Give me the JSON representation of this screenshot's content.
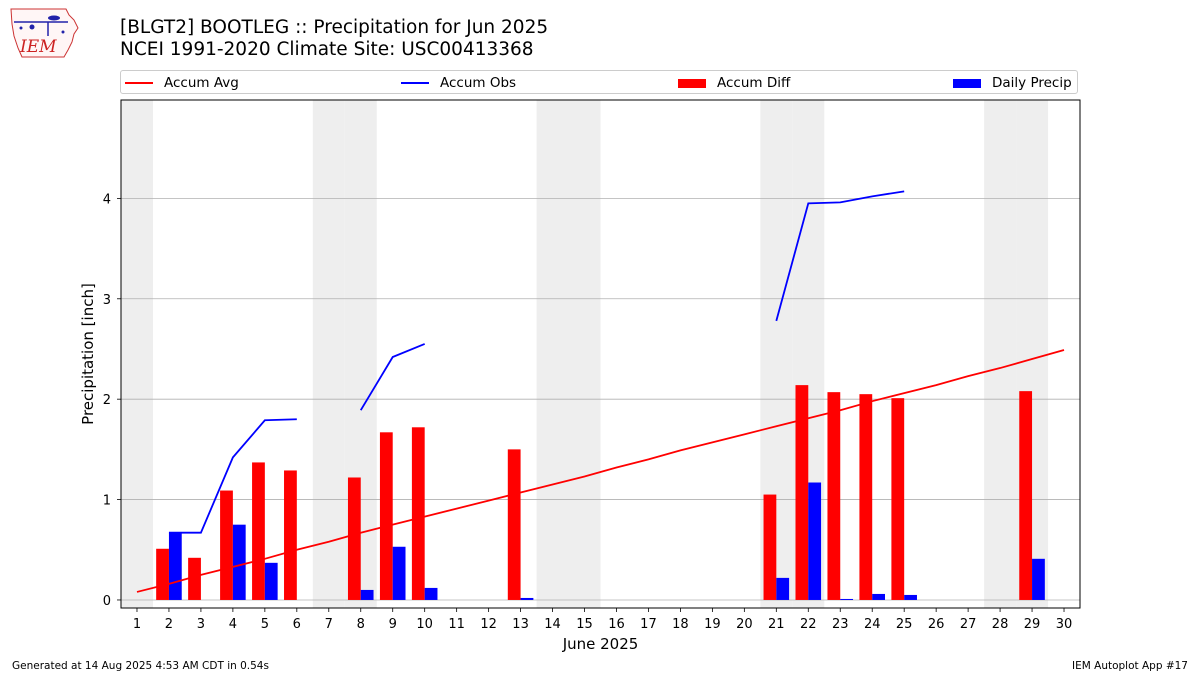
{
  "header": {
    "title_line1": "[BLGT2] BOOTLEG :: Precipitation for Jun 2025",
    "title_line2": "NCEI 1991-2020 Climate Site: USC00413368",
    "logo_text": "IEM"
  },
  "footer": {
    "left": "Generated at 14 Aug 2025 4:53 AM CDT in 0.54s",
    "right": "IEM Autoplot App #17"
  },
  "legend": {
    "placement": "top, above plot",
    "items": [
      {
        "label": "Accum Avg",
        "color": "#ff0000",
        "kind": "line"
      },
      {
        "label": "Accum Obs",
        "color": "#0000ff",
        "kind": "line"
      },
      {
        "label": "Accum Diff",
        "color": "#ff0000",
        "kind": "bar"
      },
      {
        "label": "Daily Precip",
        "color": "#0000ff",
        "kind": "bar"
      }
    ]
  },
  "chart_data": {
    "type": "bar",
    "xlabel": "June 2025",
    "ylabel": "Precipitation [inch]",
    "xlim": [
      0.5,
      30.5
    ],
    "ylim": [
      -0.08,
      4.98
    ],
    "x_ticks": [
      1,
      2,
      3,
      4,
      5,
      6,
      7,
      8,
      9,
      10,
      11,
      12,
      13,
      14,
      15,
      16,
      17,
      18,
      19,
      20,
      21,
      22,
      23,
      24,
      25,
      26,
      27,
      28,
      29,
      30
    ],
    "y_ticks": [
      0,
      1,
      2,
      3,
      4
    ],
    "grid": "horizontal",
    "weekend_shading": [
      1,
      7,
      8,
      14,
      15,
      21,
      22,
      28,
      29
    ],
    "shading_color": "#eeeeee",
    "accum_avg": {
      "name": "Accum Avg",
      "color": "#ff0000",
      "x": [
        1,
        2,
        3,
        4,
        5,
        6,
        7,
        8,
        9,
        10,
        11,
        12,
        13,
        14,
        15,
        16,
        17,
        18,
        19,
        20,
        21,
        22,
        23,
        24,
        25,
        26,
        27,
        28,
        29,
        30
      ],
      "y": [
        0.08,
        0.16,
        0.25,
        0.33,
        0.41,
        0.5,
        0.58,
        0.67,
        0.75,
        0.83,
        0.91,
        0.99,
        1.07,
        1.15,
        1.23,
        1.32,
        1.4,
        1.49,
        1.57,
        1.65,
        1.73,
        1.81,
        1.89,
        1.98,
        2.06,
        2.14,
        2.23,
        2.31,
        2.4,
        2.49
      ]
    },
    "accum_obs": {
      "name": "Accum Obs",
      "color": "#0000ff",
      "segments": [
        {
          "x": [
            2,
            3,
            4,
            5,
            6
          ],
          "y": [
            0.67,
            0.67,
            1.42,
            1.79,
            1.8
          ]
        },
        {
          "x": [
            8,
            9,
            10
          ],
          "y": [
            1.89,
            2.42,
            2.55
          ]
        },
        {
          "x": [
            21,
            22,
            23,
            24,
            25
          ],
          "y": [
            2.78,
            3.95,
            3.96,
            4.02,
            4.07
          ]
        }
      ]
    },
    "accum_diff": {
      "name": "Accum Diff",
      "color": "#ff0000",
      "x": [
        2,
        3,
        4,
        5,
        6,
        8,
        9,
        10,
        13,
        21,
        22,
        23,
        24,
        25,
        29
      ],
      "y": [
        0.51,
        0.42,
        1.09,
        1.37,
        1.29,
        1.22,
        1.67,
        1.72,
        1.5,
        1.05,
        2.14,
        2.07,
        2.05,
        2.01,
        2.08
      ]
    },
    "daily_precip": {
      "name": "Daily Precip",
      "color": "#0000ff",
      "x": [
        2,
        4,
        5,
        8,
        9,
        10,
        13,
        21,
        22,
        23,
        24,
        25,
        29
      ],
      "y": [
        0.67,
        0.75,
        0.37,
        0.1,
        0.53,
        0.12,
        0.02,
        0.22,
        1.17,
        0.01,
        0.06,
        0.05,
        0.41
      ]
    }
  }
}
